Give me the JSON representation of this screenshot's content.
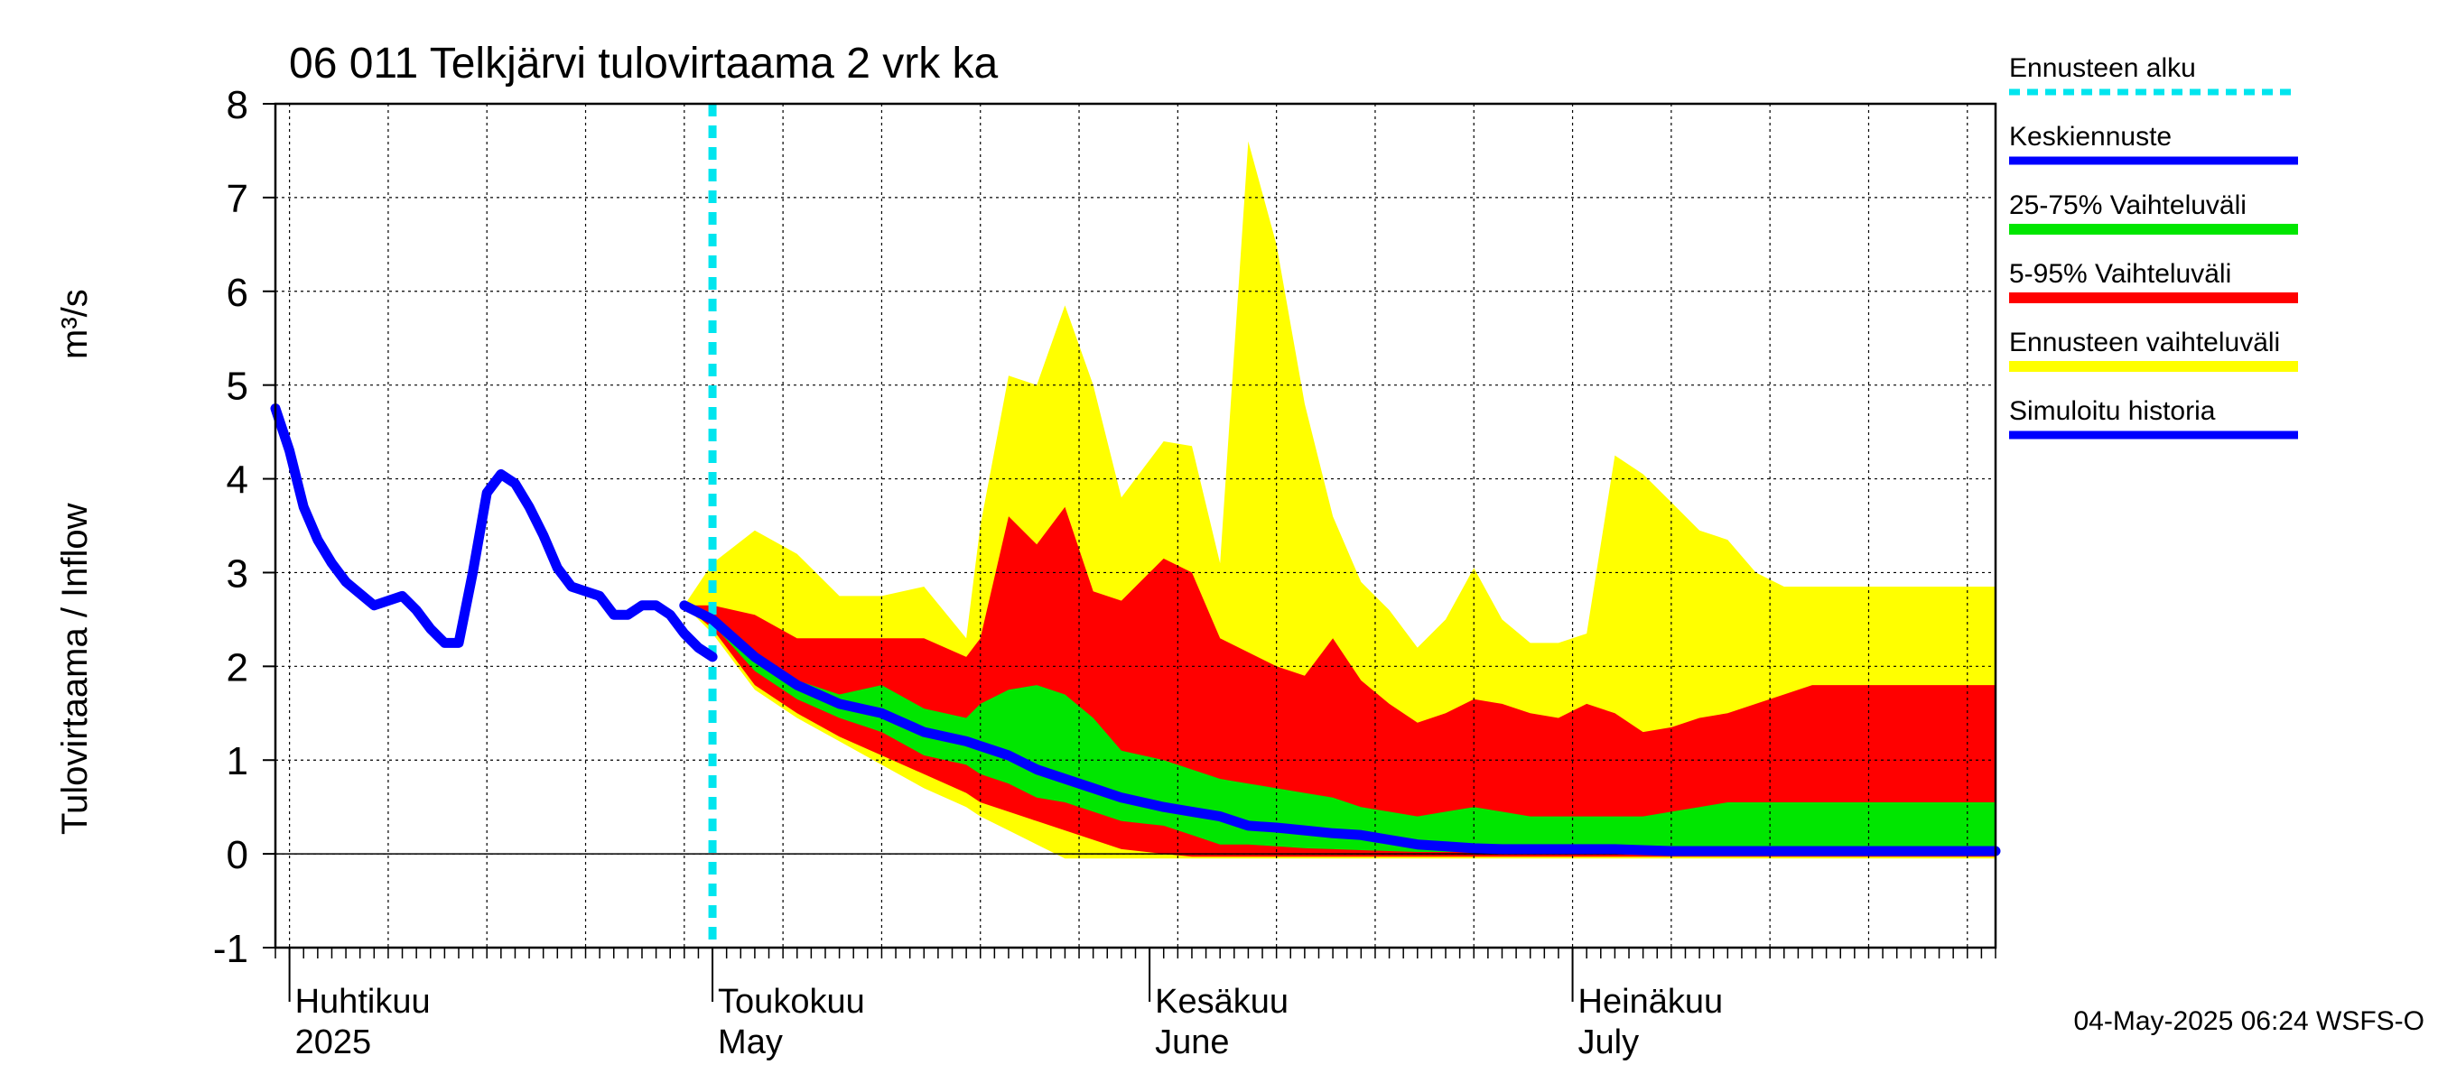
{
  "chart_data": {
    "type": "area",
    "title": "06 011 Telkjärvi tulovirtaama 2 vrk ka",
    "ylabel": "Tulovirtaama / Inflow",
    "yunit": "m³/s",
    "ylim": [
      -1,
      8
    ],
    "yticks": [
      "-1",
      "0",
      "1",
      "2",
      "3",
      "4",
      "5",
      "6",
      "7",
      "8"
    ],
    "xrange": [
      "2025-03-31",
      "2025-07-31"
    ],
    "grid": true,
    "legend_position": "right",
    "months": [
      {
        "date": "2025-04-01",
        "fi": "Huhtikuu",
        "en": "2025"
      },
      {
        "date": "2025-05-01",
        "fi": "Toukokuu",
        "en": "May"
      },
      {
        "date": "2025-06-01",
        "fi": "Kesäkuu",
        "en": "June"
      },
      {
        "date": "2025-07-01",
        "fi": "Heinäkuu",
        "en": "July"
      }
    ],
    "forecast_start": "2025-05-01",
    "colors": {
      "forecast_start": "#00e5ee",
      "mean": "#0000ff",
      "p25_75": "#00e600",
      "p5_95": "#ff0000",
      "range": "#ffff00",
      "history": "#0000ff"
    },
    "legend": [
      {
        "key": "forecast_start",
        "label": "Ennusteen alku"
      },
      {
        "key": "mean",
        "label": "Keskiennuste"
      },
      {
        "key": "p25_75",
        "label": "25-75% Vaihteluväli"
      },
      {
        "key": "p5_95",
        "label": "5-95% Vaihteluväli"
      },
      {
        "key": "range",
        "label": "Ennusteen vaihteluväli"
      },
      {
        "key": "history",
        "label": "Simuloitu historia"
      }
    ],
    "history": {
      "x": [
        "2025-03-31",
        "2025-04-01",
        "2025-04-02",
        "2025-04-03",
        "2025-04-04",
        "2025-04-05",
        "2025-04-07",
        "2025-04-09",
        "2025-04-10",
        "2025-04-11",
        "2025-04-12",
        "2025-04-13",
        "2025-04-14",
        "2025-04-15",
        "2025-04-16",
        "2025-04-17",
        "2025-04-18",
        "2025-04-19",
        "2025-04-20",
        "2025-04-21",
        "2025-04-22",
        "2025-04-23",
        "2025-04-24",
        "2025-04-25",
        "2025-04-26",
        "2025-04-27",
        "2025-04-28",
        "2025-04-29",
        "2025-04-30",
        "2025-05-01"
      ],
      "y": [
        4.75,
        4.3,
        3.7,
        3.35,
        3.1,
        2.9,
        2.65,
        2.75,
        2.6,
        2.4,
        2.25,
        2.25,
        3.0,
        3.85,
        4.05,
        3.95,
        3.7,
        3.4,
        3.05,
        2.85,
        2.8,
        2.75,
        2.55,
        2.55,
        2.65,
        2.65,
        2.55,
        2.35,
        2.2,
        2.1
      ]
    },
    "forecast": {
      "x": [
        "2025-04-29",
        "2025-05-01",
        "2025-05-04",
        "2025-05-07",
        "2025-05-10",
        "2025-05-13",
        "2025-05-16",
        "2025-05-19",
        "2025-05-20",
        "2025-05-22",
        "2025-05-24",
        "2025-05-26",
        "2025-05-28",
        "2025-05-30",
        "2025-06-02",
        "2025-06-04",
        "2025-06-06",
        "2025-06-08",
        "2025-06-10",
        "2025-06-12",
        "2025-06-14",
        "2025-06-16",
        "2025-06-18",
        "2025-06-20",
        "2025-06-22",
        "2025-06-24",
        "2025-06-26",
        "2025-06-28",
        "2025-06-30",
        "2025-07-02",
        "2025-07-04",
        "2025-07-06",
        "2025-07-08",
        "2025-07-10",
        "2025-07-12",
        "2025-07-14",
        "2025-07-16",
        "2025-07-18",
        "2025-07-20",
        "2025-07-22",
        "2025-07-24",
        "2025-07-26",
        "2025-07-28",
        "2025-07-31"
      ],
      "range_max": [
        2.65,
        3.1,
        3.45,
        3.2,
        2.75,
        2.75,
        2.85,
        2.3,
        3.5,
        5.1,
        5.0,
        5.85,
        5.0,
        3.8,
        4.4,
        4.35,
        3.1,
        7.6,
        6.5,
        4.8,
        3.6,
        2.9,
        2.6,
        2.2,
        2.5,
        3.05,
        2.5,
        2.25,
        2.25,
        2.35,
        4.25,
        4.05,
        3.75,
        3.45,
        3.35,
        3.0,
        2.85,
        2.85,
        2.85,
        2.85,
        2.85,
        2.85,
        2.85,
        2.85
      ],
      "p95": [
        2.65,
        2.65,
        2.55,
        2.3,
        2.3,
        2.3,
        2.3,
        2.1,
        2.3,
        3.6,
        3.3,
        3.7,
        2.8,
        2.7,
        3.15,
        3.0,
        2.3,
        2.15,
        2.0,
        1.9,
        2.3,
        1.85,
        1.6,
        1.4,
        1.5,
        1.65,
        1.6,
        1.5,
        1.45,
        1.6,
        1.5,
        1.3,
        1.35,
        1.45,
        1.5,
        1.6,
        1.7,
        1.8,
        1.8,
        1.8,
        1.8,
        1.8,
        1.8,
        1.8
      ],
      "p75": [
        2.65,
        2.5,
        2.15,
        1.85,
        1.7,
        1.8,
        1.55,
        1.45,
        1.6,
        1.75,
        1.8,
        1.7,
        1.45,
        1.1,
        1.0,
        0.9,
        0.8,
        0.75,
        0.7,
        0.65,
        0.6,
        0.5,
        0.45,
        0.4,
        0.45,
        0.5,
        0.45,
        0.4,
        0.4,
        0.4,
        0.4,
        0.4,
        0.45,
        0.5,
        0.55,
        0.55,
        0.55,
        0.55,
        0.55,
        0.55,
        0.55,
        0.55,
        0.55,
        0.55
      ],
      "mean": [
        2.65,
        2.5,
        2.1,
        1.8,
        1.6,
        1.5,
        1.3,
        1.2,
        1.15,
        1.05,
        0.9,
        0.8,
        0.7,
        0.6,
        0.5,
        0.45,
        0.4,
        0.3,
        0.28,
        0.25,
        0.22,
        0.2,
        0.15,
        0.1,
        0.08,
        0.06,
        0.05,
        0.05,
        0.05,
        0.05,
        0.05,
        0.04,
        0.03,
        0.03,
        0.03,
        0.03,
        0.03,
        0.03,
        0.03,
        0.03,
        0.03,
        0.03,
        0.03,
        0.03
      ],
      "p25": [
        2.65,
        2.45,
        1.95,
        1.65,
        1.45,
        1.3,
        1.05,
        0.95,
        0.85,
        0.75,
        0.6,
        0.55,
        0.45,
        0.35,
        0.3,
        0.2,
        0.1,
        0.1,
        0.08,
        0.06,
        0.05,
        0.04,
        0.03,
        0.02,
        0.02,
        0.02,
        0.02,
        0.02,
        0.02,
        0.02,
        0.02,
        0.02,
        0.02,
        0.02,
        0.02,
        0.02,
        0.02,
        0.02,
        0.02,
        0.02,
        0.02,
        0.02,
        0.02,
        0.02
      ],
      "p5": [
        2.65,
        2.4,
        1.8,
        1.5,
        1.25,
        1.05,
        0.85,
        0.65,
        0.55,
        0.45,
        0.35,
        0.25,
        0.15,
        0.05,
        0.0,
        -0.03,
        -0.03,
        -0.03,
        -0.03,
        -0.03,
        -0.03,
        -0.03,
        -0.03,
        -0.03,
        -0.03,
        -0.03,
        -0.03,
        -0.03,
        -0.03,
        -0.03,
        -0.03,
        -0.03,
        -0.03,
        -0.03,
        -0.03,
        -0.03,
        -0.03,
        -0.03,
        -0.03,
        -0.03,
        -0.03,
        -0.03,
        -0.03,
        -0.03
      ],
      "range_min": [
        2.65,
        2.35,
        1.75,
        1.45,
        1.2,
        0.95,
        0.7,
        0.5,
        0.4,
        0.25,
        0.1,
        -0.05,
        -0.05,
        -0.05,
        -0.05,
        -0.05,
        -0.05,
        -0.05,
        -0.05,
        -0.05,
        -0.05,
        -0.05,
        -0.05,
        -0.05,
        -0.05,
        -0.05,
        -0.05,
        -0.05,
        -0.05,
        -0.05,
        -0.05,
        -0.05,
        -0.05,
        -0.05,
        -0.05,
        -0.05,
        -0.05,
        -0.05,
        -0.05,
        -0.05,
        -0.05,
        -0.05,
        -0.05,
        -0.05
      ]
    }
  },
  "timestamp": "04-May-2025 06:24 WSFS-O"
}
